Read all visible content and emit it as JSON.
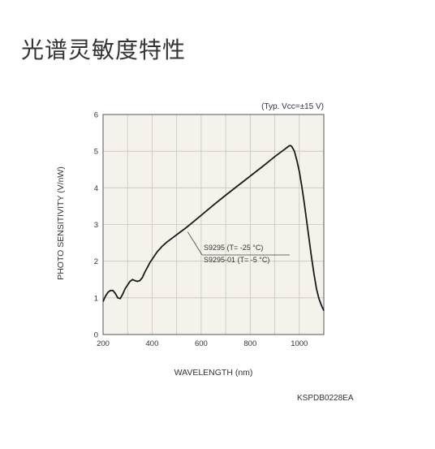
{
  "page": {
    "heading": "光谱灵敏度特性",
    "doc_code": "KSPDB0228EA"
  },
  "colors": {
    "plot_background": "#f4f2ea",
    "grid": "#c9c6bb",
    "curve": "#1a1a1a",
    "text": "#333333"
  },
  "chart_data": {
    "type": "line",
    "xlabel": "WAVELENGTH (nm)",
    "ylabel": "PHOTO SENSITIVITY (V/nW)",
    "condition_note": "(Typ. Vcc=±15 V)",
    "xlim": [
      200,
      1100
    ],
    "ylim": [
      0,
      6
    ],
    "x_ticks": [
      200,
      400,
      600,
      800,
      1000
    ],
    "x_minor_step": 100,
    "y_ticks": [
      0,
      1,
      2,
      3,
      4,
      5,
      6
    ],
    "grid": true,
    "annotations": [
      {
        "text": "S9295 (T= -25 °C)",
        "points_to": [
          545,
          2.8
        ]
      },
      {
        "text": "S9295-01 (T= -5 °C)",
        "points_to": [
          545,
          2.8
        ]
      }
    ],
    "series": [
      {
        "x": [
          200,
          210,
          220,
          230,
          240,
          250,
          260,
          270,
          280,
          290,
          300,
          310,
          320,
          330,
          340,
          350,
          360,
          370,
          380,
          390,
          400,
          420,
          440,
          460,
          480,
          500,
          520,
          540,
          560,
          580,
          600,
          650,
          700,
          750,
          800,
          850,
          900,
          940,
          950,
          960,
          965,
          970,
          980,
          990,
          1000,
          1010,
          1020,
          1030,
          1040,
          1050,
          1060,
          1070,
          1080,
          1090,
          1100
        ],
        "y": [
          0.9,
          1.05,
          1.15,
          1.2,
          1.2,
          1.12,
          1.0,
          0.98,
          1.1,
          1.25,
          1.35,
          1.45,
          1.5,
          1.47,
          1.45,
          1.47,
          1.55,
          1.7,
          1.82,
          1.95,
          2.05,
          2.25,
          2.4,
          2.52,
          2.62,
          2.72,
          2.82,
          2.92,
          3.03,
          3.14,
          3.25,
          3.53,
          3.8,
          4.06,
          4.32,
          4.58,
          4.85,
          5.05,
          5.1,
          5.15,
          5.15,
          5.12,
          5.0,
          4.75,
          4.45,
          4.05,
          3.6,
          3.1,
          2.6,
          2.1,
          1.65,
          1.25,
          0.98,
          0.8,
          0.65
        ]
      }
    ]
  }
}
